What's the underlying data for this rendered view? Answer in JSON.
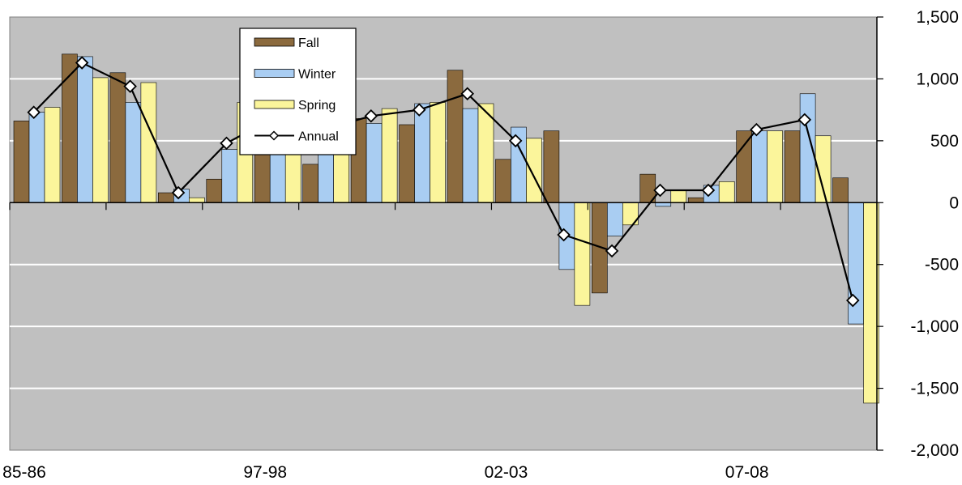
{
  "chart_data": {
    "type": "bar",
    "title": "",
    "xlabel": "",
    "ylabel": "",
    "ylim": [
      -2000,
      1500
    ],
    "yticks": [
      -2000,
      -1500,
      -1000,
      -500,
      0,
      500,
      1000,
      1500
    ],
    "ytick_labels": [
      "-2,000",
      "-1,500",
      "-1,000",
      "-500",
      "0",
      "500",
      "1,000",
      "1,500"
    ],
    "y_axis_side": "right",
    "grid": true,
    "legend_placement": "top-left",
    "x_tick_labels_shown": [
      "85-86",
      "97-98",
      "02-03",
      "07-08"
    ],
    "categories": [
      "85-86",
      "",
      "",
      "",
      "",
      "97-98",
      "",
      "",
      "",
      "",
      "02-03",
      "",
      "",
      "",
      "",
      "07-08",
      "",
      ""
    ],
    "series": [
      {
        "name": "Fall",
        "kind": "bar",
        "color": "#8B6A3E",
        "values": [
          660,
          1200,
          1050,
          80,
          190,
          600,
          310,
          680,
          630,
          1070,
          350,
          580,
          -730,
          230,
          40,
          580,
          580,
          200
        ]
      },
      {
        "name": "Winter",
        "kind": "bar",
        "color": "#A9CDF2",
        "values": [
          730,
          1180,
          810,
          110,
          430,
          720,
          600,
          640,
          800,
          760,
          610,
          -540,
          -270,
          -30,
          140,
          580,
          880,
          -980
        ]
      },
      {
        "name": "Spring",
        "kind": "bar",
        "color": "#FBF59B",
        "values": [
          770,
          1010,
          970,
          40,
          810,
          700,
          650,
          760,
          810,
          800,
          520,
          -830,
          -180,
          100,
          170,
          580,
          540,
          -1620
        ]
      },
      {
        "name": "Annual",
        "kind": "line",
        "color": "#000000",
        "values": [
          730,
          1130,
          940,
          80,
          480,
          690,
          590,
          700,
          750,
          880,
          500,
          -260,
          -390,
          100,
          100,
          590,
          670,
          -790
        ]
      }
    ],
    "plot_background": "#C0C0C0",
    "grid_color": "#FFFFFF"
  }
}
